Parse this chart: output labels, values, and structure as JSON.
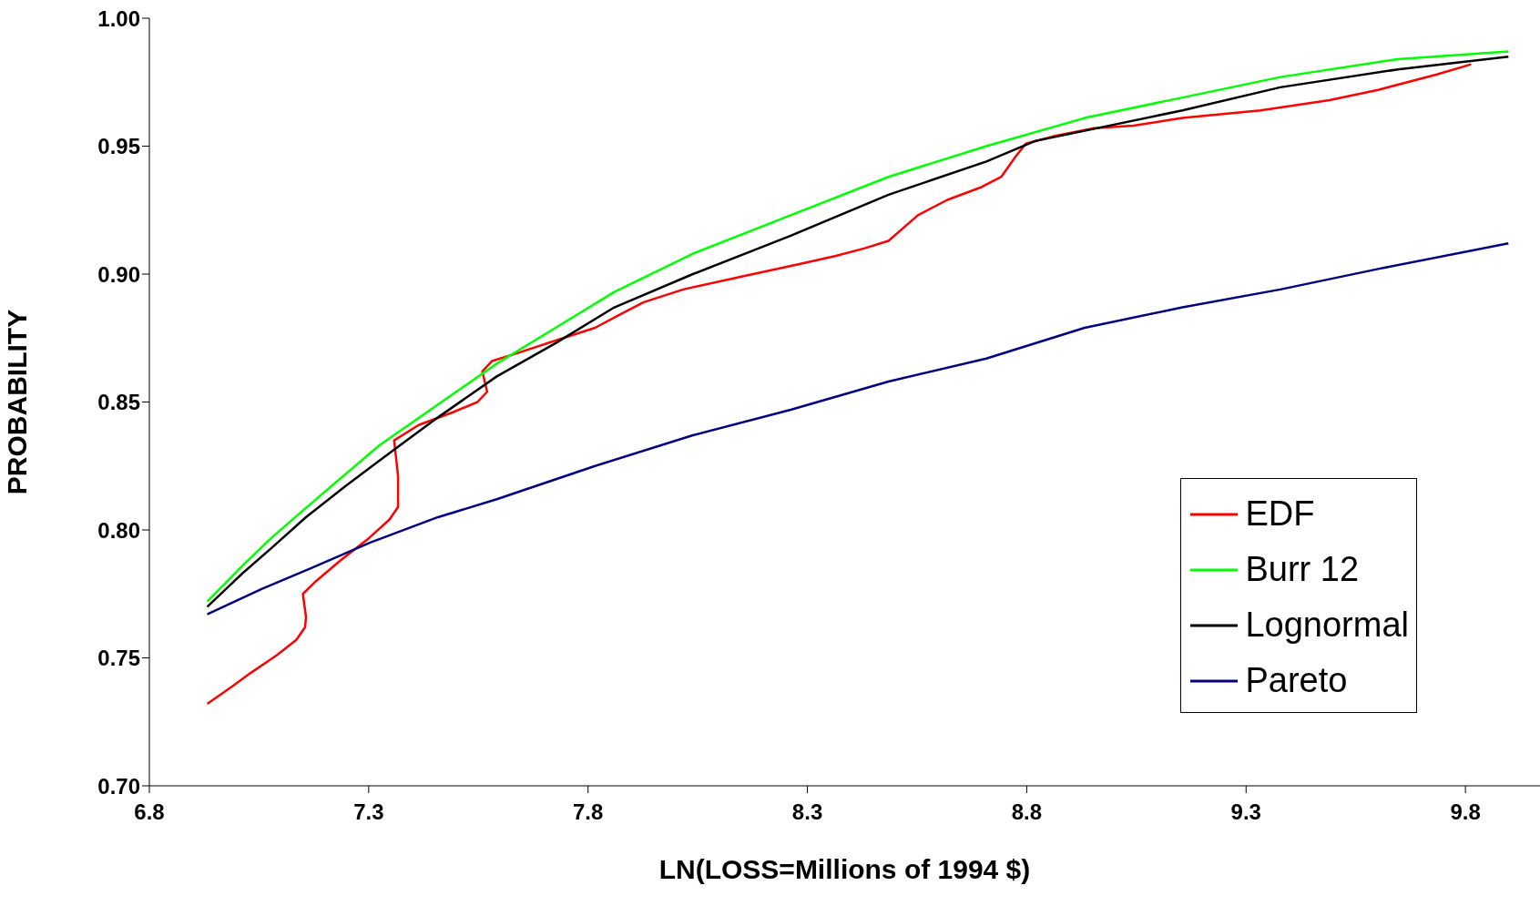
{
  "chart_data": {
    "type": "line",
    "xlabel": "LN(LOSS=Millions of 1994 $)",
    "ylabel": "PROBABILITY",
    "xlim": [
      6.8,
      9.97
    ],
    "xticks": [
      {
        "value": 6.8,
        "label": "6.8"
      },
      {
        "value": 7.3,
        "label": "7.3"
      },
      {
        "value": 7.8,
        "label": "7.8"
      },
      {
        "value": 8.3,
        "label": "8.3"
      },
      {
        "value": 8.8,
        "label": "8.8"
      },
      {
        "value": 9.3,
        "label": "9.3"
      },
      {
        "value": 9.8,
        "label": "9.8"
      }
    ],
    "ylim": [
      0.7,
      1.0
    ],
    "yticks": [
      {
        "value": 0.7,
        "label": "0.70"
      },
      {
        "value": 0.75,
        "label": "0.75"
      },
      {
        "value": 0.8,
        "label": "0.80"
      },
      {
        "value": 0.85,
        "label": "0.85"
      },
      {
        "value": 0.9,
        "label": "0.90"
      },
      {
        "value": 0.95,
        "label": "0.95"
      },
      {
        "value": 1.0,
        "label": "1.00"
      }
    ],
    "grid": false,
    "legend": "bottom right",
    "marker": "none",
    "line_style": "solid",
    "series": [
      {
        "name": "EDF",
        "color": "#ff0000",
        "x": [
          6.932,
          6.99,
          7.03,
          7.09,
          7.135,
          7.155,
          7.157,
          7.15,
          7.18,
          7.235,
          7.302,
          7.347,
          7.367,
          7.367,
          7.358,
          7.414,
          7.492,
          7.548,
          7.57,
          7.559,
          7.581,
          7.637,
          7.726,
          7.816,
          7.871,
          7.927,
          8.017,
          8.15,
          8.284,
          8.363,
          8.429,
          8.485,
          8.552,
          8.619,
          8.697,
          8.742,
          8.775,
          8.798,
          8.865,
          8.954,
          9.043,
          9.155,
          9.333,
          9.49,
          9.601,
          9.735,
          9.813
        ],
        "values": [
          0.732,
          0.739,
          0.744,
          0.751,
          0.757,
          0.762,
          0.766,
          0.775,
          0.78,
          0.788,
          0.797,
          0.804,
          0.809,
          0.821,
          0.835,
          0.841,
          0.846,
          0.85,
          0.854,
          0.862,
          0.866,
          0.869,
          0.874,
          0.879,
          0.884,
          0.889,
          0.894,
          0.899,
          0.904,
          0.907,
          0.91,
          0.913,
          0.923,
          0.929,
          0.934,
          0.938,
          0.946,
          0.951,
          0.954,
          0.957,
          0.958,
          0.961,
          0.964,
          0.968,
          0.972,
          0.978,
          0.982
        ]
      },
      {
        "name": "Burr 12",
        "color": "#00ff00",
        "x": [
          6.932,
          7.012,
          7.079,
          7.146,
          7.235,
          7.324,
          7.458,
          7.592,
          7.726,
          7.86,
          8.039,
          8.262,
          8.485,
          8.708,
          8.932,
          9.155,
          9.378,
          9.646,
          9.898
        ],
        "values": [
          0.772,
          0.786,
          0.797,
          0.807,
          0.82,
          0.833,
          0.849,
          0.865,
          0.879,
          0.893,
          0.908,
          0.923,
          0.938,
          0.95,
          0.961,
          0.969,
          0.977,
          0.984,
          0.987
        ]
      },
      {
        "name": "Lognormal",
        "color": "#000000",
        "x": [
          6.932,
          7.012,
          7.079,
          7.157,
          7.246,
          7.347,
          7.458,
          7.592,
          7.726,
          7.86,
          8.039,
          8.262,
          8.485,
          8.708,
          8.819,
          8.932,
          9.155,
          9.378,
          9.646,
          9.898
        ],
        "values": [
          0.77,
          0.783,
          0.793,
          0.805,
          0.817,
          0.83,
          0.844,
          0.86,
          0.873,
          0.887,
          0.9,
          0.915,
          0.931,
          0.944,
          0.952,
          0.956,
          0.964,
          0.973,
          0.98,
          0.985
        ]
      },
      {
        "name": "Pareto",
        "color": "#000080",
        "x": [
          6.932,
          7.057,
          7.168,
          7.302,
          7.458,
          7.592,
          7.816,
          8.039,
          8.262,
          8.485,
          8.708,
          8.932,
          9.155,
          9.378,
          9.601,
          9.898
        ],
        "values": [
          0.767,
          0.777,
          0.785,
          0.795,
          0.805,
          0.812,
          0.825,
          0.837,
          0.847,
          0.858,
          0.867,
          0.879,
          0.887,
          0.894,
          0.902,
          0.912
        ]
      }
    ]
  }
}
